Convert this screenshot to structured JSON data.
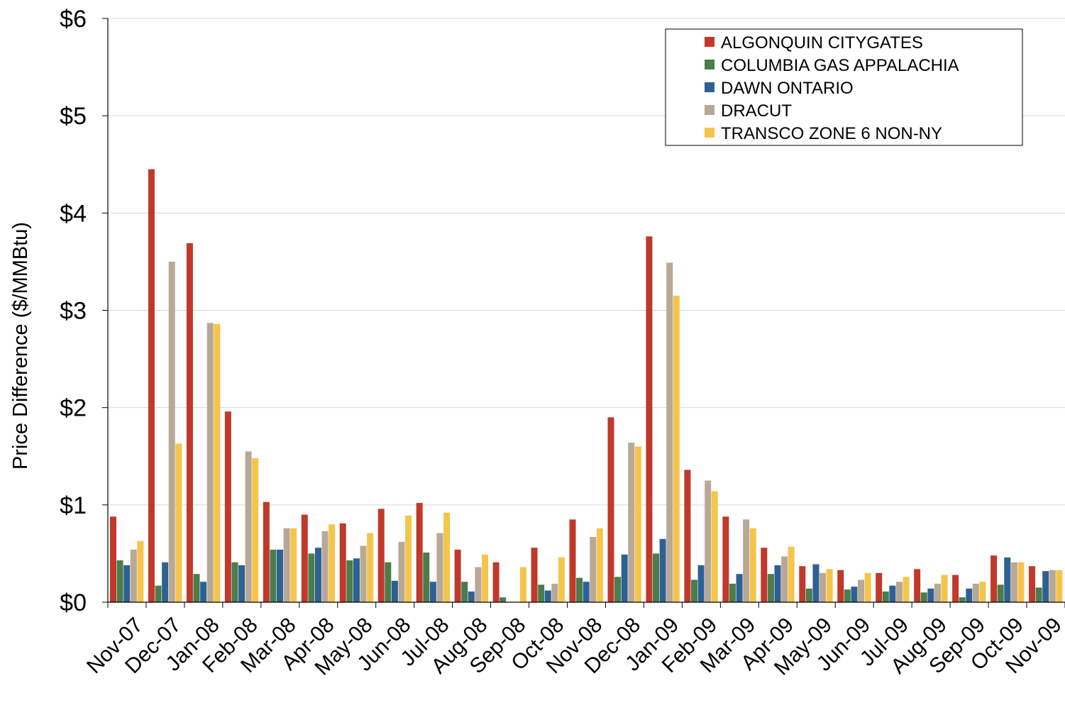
{
  "chart_data": {
    "type": "bar",
    "title": "",
    "xlabel": "",
    "ylabel": "Price Difference  ($/MMBtu)",
    "ylim": [
      0,
      6
    ],
    "yticks": [
      0,
      1,
      2,
      3,
      4,
      5,
      6
    ],
    "ytick_labels": [
      "$0",
      "$1",
      "$2",
      "$3",
      "$4",
      "$5",
      "$6"
    ],
    "grid": true,
    "legend_position": "top-right",
    "categories": [
      "Nov-07",
      "Dec-07",
      "Jan-08",
      "Feb-08",
      "Mar-08",
      "Apr-08",
      "May-08",
      "Jun-08",
      "Jul-08",
      "Aug-08",
      "Sep-08",
      "Oct-08",
      "Nov-08",
      "Dec-08",
      "Jan-09",
      "Feb-09",
      "Mar-09",
      "Apr-09",
      "May-09",
      "Jun-09",
      "Jul-09",
      "Aug-09",
      "Sep-09",
      "Oct-09",
      "Nov-09"
    ],
    "series": [
      {
        "name": "ALGONQUIN CITYGATES",
        "color": "#C0392B",
        "values": [
          0.88,
          4.45,
          3.69,
          1.96,
          1.03,
          0.9,
          0.81,
          0.96,
          1.02,
          0.54,
          0.41,
          0.56,
          0.85,
          1.9,
          3.76,
          1.36,
          0.88,
          0.56,
          0.37,
          0.33,
          0.3,
          0.34,
          0.28,
          0.48,
          0.37
        ]
      },
      {
        "name": "COLUMBIA GAS APPALACHIA",
        "color": "#4A7D4B",
        "values": [
          0.43,
          0.17,
          0.29,
          0.41,
          0.54,
          0.5,
          0.43,
          0.41,
          0.51,
          0.21,
          0.05,
          0.18,
          0.25,
          0.26,
          0.5,
          0.23,
          0.19,
          0.29,
          0.14,
          0.13,
          0.11,
          0.1,
          0.05,
          0.18,
          0.15
        ]
      },
      {
        "name": "DAWN ONTARIO",
        "color": "#2E6193",
        "values": [
          0.38,
          0.41,
          0.21,
          0.38,
          0.54,
          0.56,
          0.45,
          0.22,
          0.21,
          0.11,
          0.0,
          0.12,
          0.21,
          0.49,
          0.65,
          0.38,
          0.29,
          0.38,
          0.39,
          0.16,
          0.17,
          0.14,
          0.14,
          0.46,
          0.32
        ]
      },
      {
        "name": "DRACUT",
        "color": "#B8A896",
        "values": [
          0.54,
          3.5,
          2.87,
          1.55,
          0.76,
          0.73,
          0.58,
          0.62,
          0.71,
          0.36,
          0.0,
          0.19,
          0.67,
          1.64,
          3.49,
          1.25,
          0.85,
          0.47,
          0.3,
          0.23,
          0.21,
          0.19,
          0.19,
          0.41,
          0.33
        ]
      },
      {
        "name": "TRANSCO ZONE 6 NON-NY",
        "color": "#F5C54B",
        "values": [
          0.63,
          1.63,
          2.86,
          1.48,
          0.76,
          0.8,
          0.71,
          0.89,
          0.92,
          0.49,
          0.36,
          0.46,
          0.76,
          1.6,
          3.15,
          1.14,
          0.76,
          0.57,
          0.34,
          0.3,
          0.26,
          0.28,
          0.21,
          0.41,
          0.33
        ]
      }
    ]
  }
}
